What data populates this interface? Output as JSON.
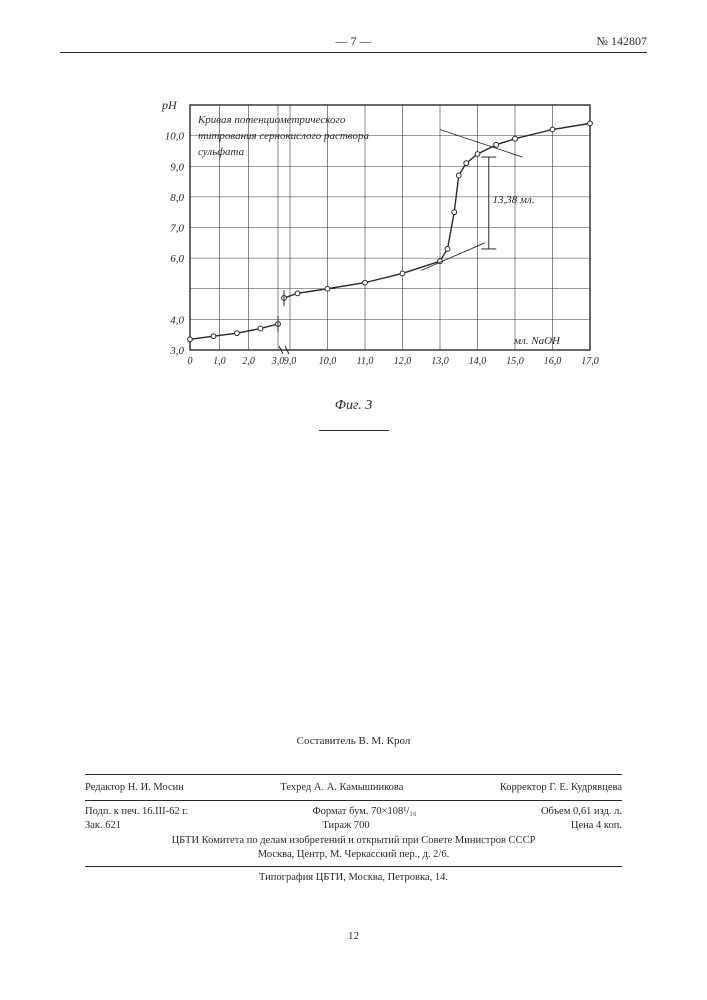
{
  "header": {
    "page_number": "— 7 —",
    "document_number": "№ 142807"
  },
  "chart": {
    "type": "line",
    "title_lines": [
      "Кривая потенциометрического",
      "титрования сернокислого раствора",
      "сульфата"
    ],
    "title_fontsize": 11,
    "ylabel": "pH",
    "xlabel": "мл. NaOH",
    "xlim": [
      0,
      17
    ],
    "ylim": [
      3,
      11
    ],
    "yticks": [
      3.0,
      4.0,
      6.0,
      7.0,
      8.0,
      9.0,
      10.0
    ],
    "ytick_labels": [
      "3,0",
      "4,0",
      "6,0",
      "7,0",
      "8,0",
      "9,0",
      "10,0"
    ],
    "xticks": [
      0,
      1,
      2,
      3,
      9,
      10,
      11,
      12,
      13,
      14,
      15,
      16,
      17
    ],
    "xtick_labels": [
      "0",
      "1,0",
      "2,0",
      "3,0",
      "9,0",
      "10,0",
      "11,0",
      "12,0",
      "13,0",
      "14,0",
      "15,0",
      "16,0",
      "17,0"
    ],
    "axis_break_at": 3.5,
    "curve1": {
      "x": [
        0.0,
        0.8,
        1.6,
        2.4,
        3.0
      ],
      "y": [
        3.35,
        3.45,
        3.55,
        3.7,
        3.85
      ]
    },
    "curve2": {
      "x": [
        8.5,
        9.2,
        10.0,
        11.0,
        12.0,
        13.0,
        13.2,
        13.38,
        13.5,
        13.7,
        14.0,
        14.5,
        15.0,
        16.0,
        17.0
      ],
      "y": [
        4.7,
        4.85,
        5.0,
        5.2,
        5.5,
        5.9,
        6.3,
        7.5,
        8.7,
        9.1,
        9.4,
        9.7,
        9.9,
        10.2,
        10.4
      ]
    },
    "equiv_point_x": 13.38,
    "equiv_label": "13,38 мл.",
    "equiv_fontsize": 11,
    "colors": {
      "line": "#2a2a2a",
      "grid": "#3a3a3a",
      "background": "#ffffff",
      "text": "#2a2a2a"
    },
    "line_width": 1.4,
    "grid_width": 0.6,
    "marker": "circle",
    "marker_size": 2.4
  },
  "figure_label": "Фиг. 3",
  "compiler": "Составитель В. М. Крол",
  "credits": {
    "editor": "Редактор Н. И. Мосин",
    "tech_editor": "Техред А. А. Камышникова",
    "proofreader": "Корректор Г. Е. Кудрявцева"
  },
  "meta": {
    "signed": "Подп. к печ. 16.III-62 г.",
    "format": "Формат бум. 70×108¹/₁₆",
    "volume": "Объем 0,61 изд. л.",
    "order": "Зак. 621",
    "edition": "Тираж 700",
    "price": "Цена 4 коп."
  },
  "org_lines": [
    "ЦБТИ Комитета по делам изобретений и открытий при Совете Министров СССР",
    "Москва, Центр, М. Черкасский пер., д. 2/6."
  ],
  "printer": "Типография ЦБТИ, Москва, Петровка, 14.",
  "bottom_number": "12"
}
